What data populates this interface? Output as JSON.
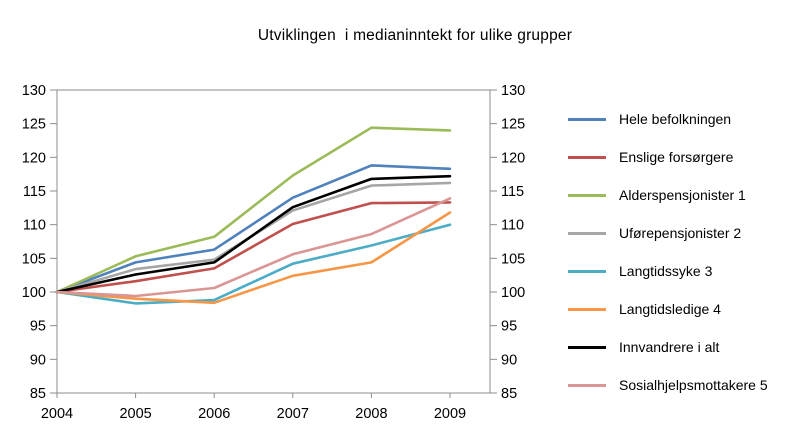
{
  "chart_data": {
    "type": "line",
    "title": "Utviklingen  i medianinntekt for ulike grupper",
    "x": [
      2004,
      2005,
      2006,
      2007,
      2008,
      2009
    ],
    "categories": [
      "2004",
      "2005",
      "2006",
      "2007",
      "2008",
      "2009"
    ],
    "xlabel": "",
    "ylabel": "",
    "ylim": [
      85,
      130
    ],
    "yticks": [
      130,
      125,
      120,
      115,
      110,
      105,
      100,
      95,
      90,
      85
    ],
    "grid": false,
    "legend_position": "right",
    "axis_color": "#8c8c8c",
    "series": [
      {
        "name": "Hele befolkningen",
        "color": "#4F81BD",
        "values": [
          100,
          104.4,
          106.3,
          114.0,
          118.8,
          118.3
        ]
      },
      {
        "name": "Enslige forsørgere",
        "color": "#C0504D",
        "values": [
          100,
          101.6,
          103.5,
          110.1,
          113.2,
          113.3
        ]
      },
      {
        "name": "Alderspensjonister 1",
        "color": "#9BBB59",
        "values": [
          100,
          105.3,
          108.2,
          117.3,
          124.4,
          124.0
        ]
      },
      {
        "name": "Uførepensjonister 2",
        "color": "#A6A6A6",
        "values": [
          100,
          103.4,
          104.8,
          112.1,
          115.8,
          116.2
        ]
      },
      {
        "name": "Langtidssyke 3",
        "color": "#4BACC6",
        "values": [
          100,
          98.3,
          98.8,
          104.2,
          106.9,
          110.0
        ]
      },
      {
        "name": "Langtidsledige 4",
        "color": "#F79646",
        "values": [
          100,
          99.0,
          98.4,
          102.4,
          104.4,
          111.8
        ]
      },
      {
        "name": "Innvandrere i alt",
        "color": "#000000",
        "values": [
          100,
          102.6,
          104.4,
          112.6,
          116.8,
          117.2
        ]
      },
      {
        "name": "Sosialhjelpsmottakere 5",
        "color": "#D99694",
        "values": [
          100,
          99.4,
          100.6,
          105.6,
          108.6,
          113.9
        ]
      }
    ]
  }
}
